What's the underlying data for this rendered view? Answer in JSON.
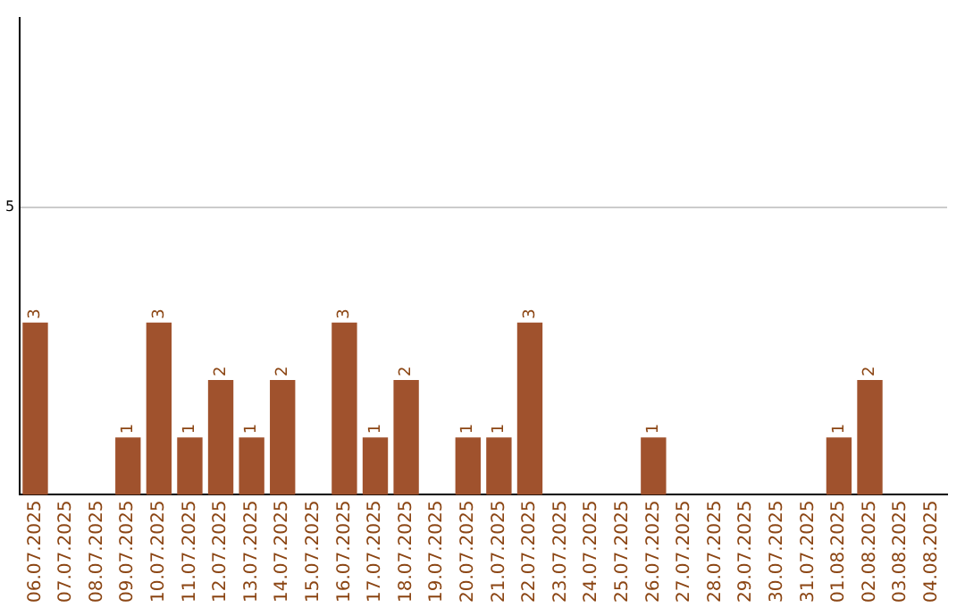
{
  "chart_data": {
    "type": "bar",
    "categories": [
      "06.07.2025",
      "07.07.2025",
      "08.07.2025",
      "09.07.2025",
      "10.07.2025",
      "11.07.2025",
      "12.07.2025",
      "13.07.2025",
      "14.07.2025",
      "15.07.2025",
      "16.07.2025",
      "17.07.2025",
      "18.07.2025",
      "19.07.2025",
      "20.07.2025",
      "21.07.2025",
      "22.07.2025",
      "23.07.2025",
      "24.07.2025",
      "25.07.2025",
      "26.07.2025",
      "27.07.2025",
      "28.07.2025",
      "29.07.2025",
      "30.07.2025",
      "31.07.2025",
      "01.08.2025",
      "02.08.2025",
      "03.08.2025",
      "04.08.2025"
    ],
    "values": [
      3,
      0,
      0,
      1,
      3,
      1,
      2,
      1,
      2,
      0,
      3,
      1,
      2,
      0,
      1,
      1,
      3,
      0,
      0,
      0,
      1,
      0,
      0,
      0,
      0,
      0,
      1,
      2,
      0,
      0
    ],
    "value_labels": [
      "3",
      null,
      null,
      "1",
      "3",
      "1",
      "2",
      "1",
      "2",
      null,
      "3",
      "1",
      "2",
      null,
      "1",
      "1",
      "3",
      null,
      null,
      null,
      "1",
      null,
      null,
      null,
      null,
      null,
      "1",
      "2",
      null,
      null
    ],
    "color": "#a0522d",
    "ylim": [
      0,
      8.3
    ],
    "yticks": [
      5
    ],
    "grid": "y"
  }
}
